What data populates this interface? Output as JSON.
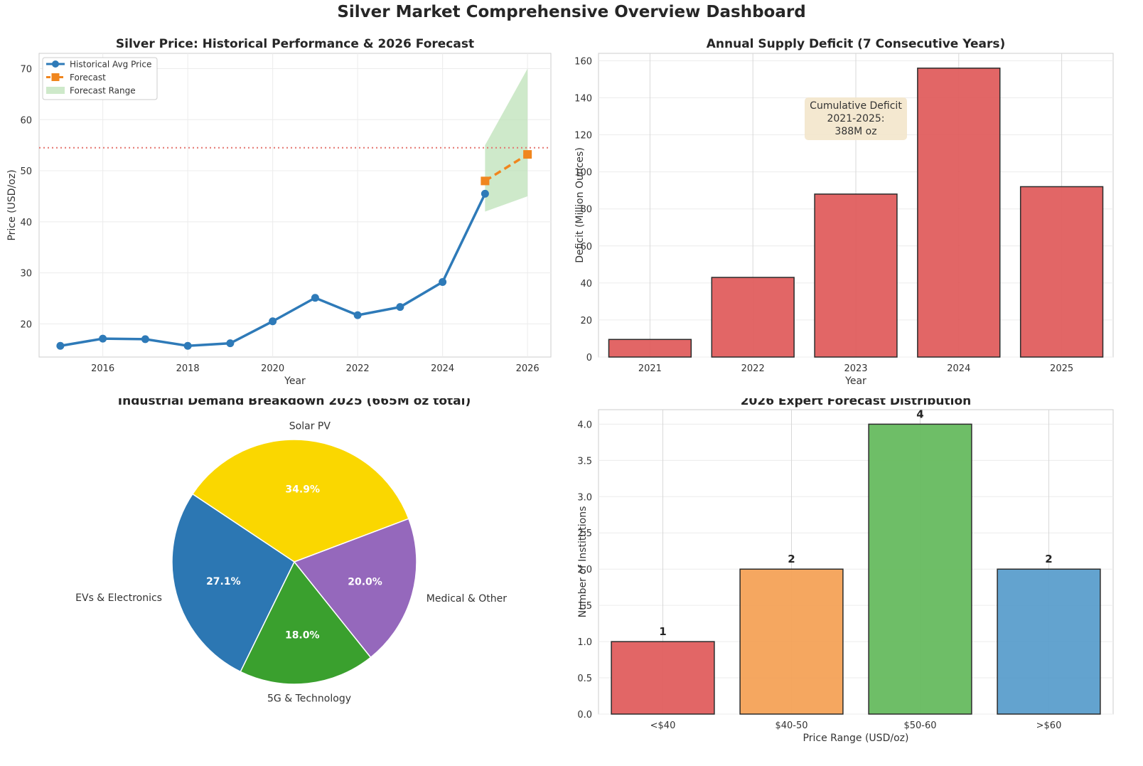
{
  "dashboard": {
    "title": "Silver Market Comprehensive Overview Dashboard"
  },
  "colors": {
    "historical": "#2e7ab8",
    "forecast": "#f0861e",
    "forecast_range": "#b9e0b3",
    "reference_line": "#e4756f",
    "deficit_bar": "#e05e5e",
    "annotation_bg": "#f3e7cd",
    "pie": [
      "#fad700",
      "#9568bc",
      "#3aa02e",
      "#2c77b3"
    ],
    "forecast_bars": [
      "#e05e5e",
      "#f4a257",
      "#66bb5f",
      "#5b9ecc"
    ]
  },
  "chart_data": [
    {
      "id": "price",
      "type": "line",
      "title": "Silver Price: Historical Performance & 2026 Forecast",
      "xlabel": "Year",
      "ylabel": "Price (USD/oz)",
      "xlim": [
        2014.5,
        2026.55
      ],
      "ylim": [
        13.5,
        73
      ],
      "xticks": [
        2016,
        2018,
        2020,
        2022,
        2024,
        2026
      ],
      "yticks": [
        20,
        30,
        40,
        50,
        60,
        70
      ],
      "reference_line": 54.5,
      "legend": [
        "Historical Avg Price",
        "Forecast",
        "Forecast Range"
      ],
      "legend_position": "top-left",
      "series": [
        {
          "name": "Historical Avg Price",
          "x": [
            2015,
            2016,
            2017,
            2018,
            2019,
            2020,
            2021,
            2022,
            2023,
            2024,
            2025
          ],
          "y": [
            15.7,
            17.1,
            17.0,
            15.7,
            16.2,
            20.5,
            25.1,
            21.7,
            23.3,
            28.2,
            45.5
          ]
        },
        {
          "name": "Forecast",
          "x": [
            2025,
            2026
          ],
          "y": [
            48.0,
            53.2
          ]
        },
        {
          "name": "Forecast Range",
          "x": [
            2025,
            2026
          ],
          "low": [
            42.0,
            45.0
          ],
          "high": [
            55.0,
            70.0
          ]
        }
      ]
    },
    {
      "id": "deficit",
      "type": "bar",
      "title": "Annual Supply Deficit (7 Consecutive Years)",
      "xlabel": "Year",
      "ylabel": "Deficit (Million Ounces)",
      "categories": [
        "2021",
        "2022",
        "2023",
        "2024",
        "2025"
      ],
      "values": [
        9.5,
        43,
        88,
        156,
        92
      ],
      "ylim": [
        0,
        164
      ],
      "yticks": [
        0,
        20,
        40,
        60,
        80,
        100,
        120,
        140,
        160
      ],
      "annotation": [
        "Cumulative Deficit",
        "2021-2025:",
        "388M oz"
      ]
    },
    {
      "id": "demand",
      "type": "pie",
      "title": "Industrial Demand Breakdown 2025 (665M oz total)",
      "labels": [
        "Solar PV",
        "Medical & Other",
        "5G & Technology",
        "EVs & Electronics"
      ],
      "values": [
        34.9,
        20.0,
        18.0,
        27.1
      ],
      "percent_labels": [
        "34.9%",
        "20.0%",
        "18.0%",
        "27.1%"
      ]
    },
    {
      "id": "experts",
      "type": "bar",
      "title": "2026 Expert Forecast Distribution",
      "xlabel": "Price Range (USD/oz)",
      "ylabel": "Number of Institutions",
      "categories": [
        "<$40",
        "$40-50",
        "$50-60",
        ">$60"
      ],
      "values": [
        1,
        2,
        4,
        2
      ],
      "value_labels": [
        "1",
        "2",
        "4",
        "2"
      ],
      "ylim": [
        0,
        4.2
      ],
      "yticks": [
        "0.0",
        "0.5",
        "1.0",
        "1.5",
        "2.0",
        "2.5",
        "3.0",
        "3.5",
        "4.0"
      ]
    }
  ]
}
